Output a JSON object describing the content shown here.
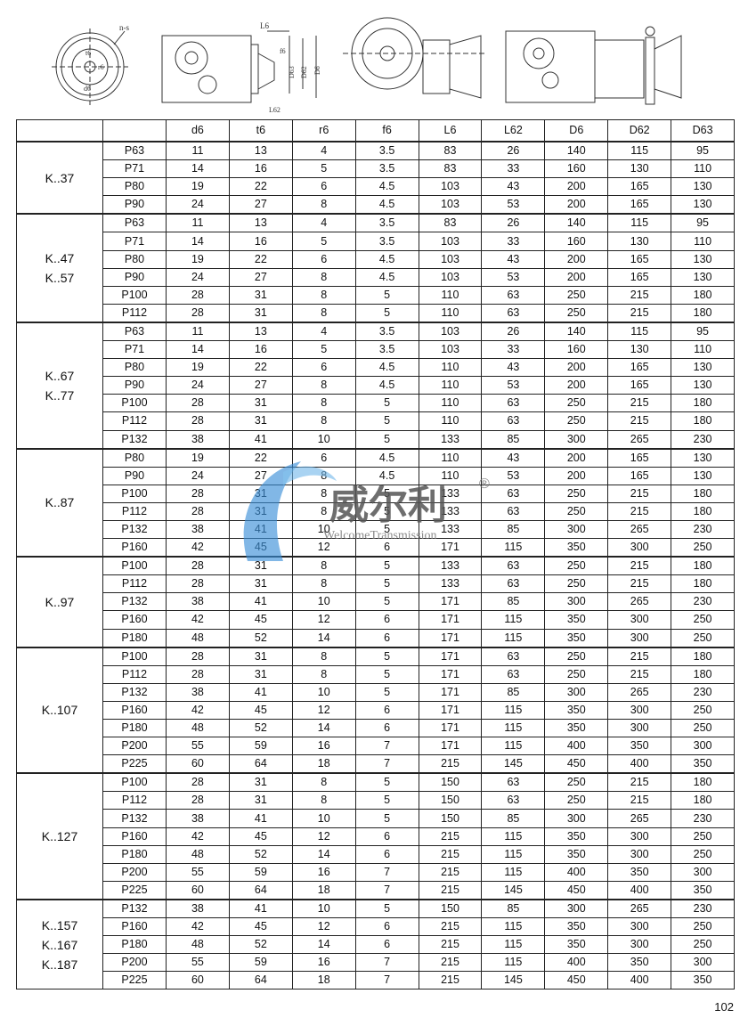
{
  "drawings": {
    "labels": [
      "n-s",
      "t6",
      "r6",
      "d6",
      "L6",
      "f6",
      "D63",
      "D62",
      "D6",
      "L62"
    ]
  },
  "columns": [
    "",
    "",
    "d6",
    "t6",
    "r6",
    "f6",
    "L6",
    "L62",
    "D6",
    "D62",
    "D63"
  ],
  "groups": [
    {
      "label": [
        "K..37"
      ],
      "rows": [
        [
          "P63",
          "11",
          "13",
          "4",
          "3.5",
          "83",
          "26",
          "140",
          "115",
          "95"
        ],
        [
          "P71",
          "14",
          "16",
          "5",
          "3.5",
          "83",
          "33",
          "160",
          "130",
          "110"
        ],
        [
          "P80",
          "19",
          "22",
          "6",
          "4.5",
          "103",
          "43",
          "200",
          "165",
          "130"
        ],
        [
          "P90",
          "24",
          "27",
          "8",
          "4.5",
          "103",
          "53",
          "200",
          "165",
          "130"
        ]
      ]
    },
    {
      "label": [
        "K..47",
        "K..57"
      ],
      "rows": [
        [
          "P63",
          "11",
          "13",
          "4",
          "3.5",
          "83",
          "26",
          "140",
          "115",
          "95"
        ],
        [
          "P71",
          "14",
          "16",
          "5",
          "3.5",
          "103",
          "33",
          "160",
          "130",
          "110"
        ],
        [
          "P80",
          "19",
          "22",
          "6",
          "4.5",
          "103",
          "43",
          "200",
          "165",
          "130"
        ],
        [
          "P90",
          "24",
          "27",
          "8",
          "4.5",
          "103",
          "53",
          "200",
          "165",
          "130"
        ],
        [
          "P100",
          "28",
          "31",
          "8",
          "5",
          "110",
          "63",
          "250",
          "215",
          "180"
        ],
        [
          "P112",
          "28",
          "31",
          "8",
          "5",
          "110",
          "63",
          "250",
          "215",
          "180"
        ]
      ]
    },
    {
      "label": [
        "K..67",
        "K..77"
      ],
      "rows": [
        [
          "P63",
          "11",
          "13",
          "4",
          "3.5",
          "103",
          "26",
          "140",
          "115",
          "95"
        ],
        [
          "P71",
          "14",
          "16",
          "5",
          "3.5",
          "103",
          "33",
          "160",
          "130",
          "110"
        ],
        [
          "P80",
          "19",
          "22",
          "6",
          "4.5",
          "110",
          "43",
          "200",
          "165",
          "130"
        ],
        [
          "P90",
          "24",
          "27",
          "8",
          "4.5",
          "110",
          "53",
          "200",
          "165",
          "130"
        ],
        [
          "P100",
          "28",
          "31",
          "8",
          "5",
          "110",
          "63",
          "250",
          "215",
          "180"
        ],
        [
          "P112",
          "28",
          "31",
          "8",
          "5",
          "110",
          "63",
          "250",
          "215",
          "180"
        ],
        [
          "P132",
          "38",
          "41",
          "10",
          "5",
          "133",
          "85",
          "300",
          "265",
          "230"
        ]
      ]
    },
    {
      "label": [
        "K..87"
      ],
      "rows": [
        [
          "P80",
          "19",
          "22",
          "6",
          "4.5",
          "110",
          "43",
          "200",
          "165",
          "130"
        ],
        [
          "P90",
          "24",
          "27",
          "8",
          "4.5",
          "110",
          "53",
          "200",
          "165",
          "130"
        ],
        [
          "P100",
          "28",
          "31",
          "8",
          "5",
          "133",
          "63",
          "250",
          "215",
          "180"
        ],
        [
          "P112",
          "28",
          "31",
          "8",
          "5",
          "133",
          "63",
          "250",
          "215",
          "180"
        ],
        [
          "P132",
          "38",
          "41",
          "10",
          "5",
          "133",
          "85",
          "300",
          "265",
          "230"
        ],
        [
          "P160",
          "42",
          "45",
          "12",
          "6",
          "171",
          "115",
          "350",
          "300",
          "250"
        ]
      ]
    },
    {
      "label": [
        "K..97"
      ],
      "rows": [
        [
          "P100",
          "28",
          "31",
          "8",
          "5",
          "133",
          "63",
          "250",
          "215",
          "180"
        ],
        [
          "P112",
          "28",
          "31",
          "8",
          "5",
          "133",
          "63",
          "250",
          "215",
          "180"
        ],
        [
          "P132",
          "38",
          "41",
          "10",
          "5",
          "171",
          "85",
          "300",
          "265",
          "230"
        ],
        [
          "P160",
          "42",
          "45",
          "12",
          "6",
          "171",
          "115",
          "350",
          "300",
          "250"
        ],
        [
          "P180",
          "48",
          "52",
          "14",
          "6",
          "171",
          "115",
          "350",
          "300",
          "250"
        ]
      ]
    },
    {
      "label": [
        "K..107"
      ],
      "rows": [
        [
          "P100",
          "28",
          "31",
          "8",
          "5",
          "171",
          "63",
          "250",
          "215",
          "180"
        ],
        [
          "P112",
          "28",
          "31",
          "8",
          "5",
          "171",
          "63",
          "250",
          "215",
          "180"
        ],
        [
          "P132",
          "38",
          "41",
          "10",
          "5",
          "171",
          "85",
          "300",
          "265",
          "230"
        ],
        [
          "P160",
          "42",
          "45",
          "12",
          "6",
          "171",
          "115",
          "350",
          "300",
          "250"
        ],
        [
          "P180",
          "48",
          "52",
          "14",
          "6",
          "171",
          "115",
          "350",
          "300",
          "250"
        ],
        [
          "P200",
          "55",
          "59",
          "16",
          "7",
          "171",
          "115",
          "400",
          "350",
          "300"
        ],
        [
          "P225",
          "60",
          "64",
          "18",
          "7",
          "215",
          "145",
          "450",
          "400",
          "350"
        ]
      ]
    },
    {
      "label": [
        "K..127"
      ],
      "rows": [
        [
          "P100",
          "28",
          "31",
          "8",
          "5",
          "150",
          "63",
          "250",
          "215",
          "180"
        ],
        [
          "P112",
          "28",
          "31",
          "8",
          "5",
          "150",
          "63",
          "250",
          "215",
          "180"
        ],
        [
          "P132",
          "38",
          "41",
          "10",
          "5",
          "150",
          "85",
          "300",
          "265",
          "230"
        ],
        [
          "P160",
          "42",
          "45",
          "12",
          "6",
          "215",
          "115",
          "350",
          "300",
          "250"
        ],
        [
          "P180",
          "48",
          "52",
          "14",
          "6",
          "215",
          "115",
          "350",
          "300",
          "250"
        ],
        [
          "P200",
          "55",
          "59",
          "16",
          "7",
          "215",
          "115",
          "400",
          "350",
          "300"
        ],
        [
          "P225",
          "60",
          "64",
          "18",
          "7",
          "215",
          "145",
          "450",
          "400",
          "350"
        ]
      ]
    },
    {
      "label": [
        "K..157",
        "K..167",
        "K..187"
      ],
      "rows": [
        [
          "P132",
          "38",
          "41",
          "10",
          "5",
          "150",
          "85",
          "300",
          "265",
          "230"
        ],
        [
          "P160",
          "42",
          "45",
          "12",
          "6",
          "215",
          "115",
          "350",
          "300",
          "250"
        ],
        [
          "P180",
          "48",
          "52",
          "14",
          "6",
          "215",
          "115",
          "350",
          "300",
          "250"
        ],
        [
          "P200",
          "55",
          "59",
          "16",
          "7",
          "215",
          "115",
          "400",
          "350",
          "300"
        ],
        [
          "P225",
          "60",
          "64",
          "18",
          "7",
          "215",
          "145",
          "450",
          "400",
          "350"
        ]
      ]
    }
  ],
  "watermark": {
    "brand_cn": "威尔利",
    "brand_en": "WelcomeTransmission",
    "mark": "®",
    "color": "#3a8fd8"
  },
  "page_number": "102"
}
